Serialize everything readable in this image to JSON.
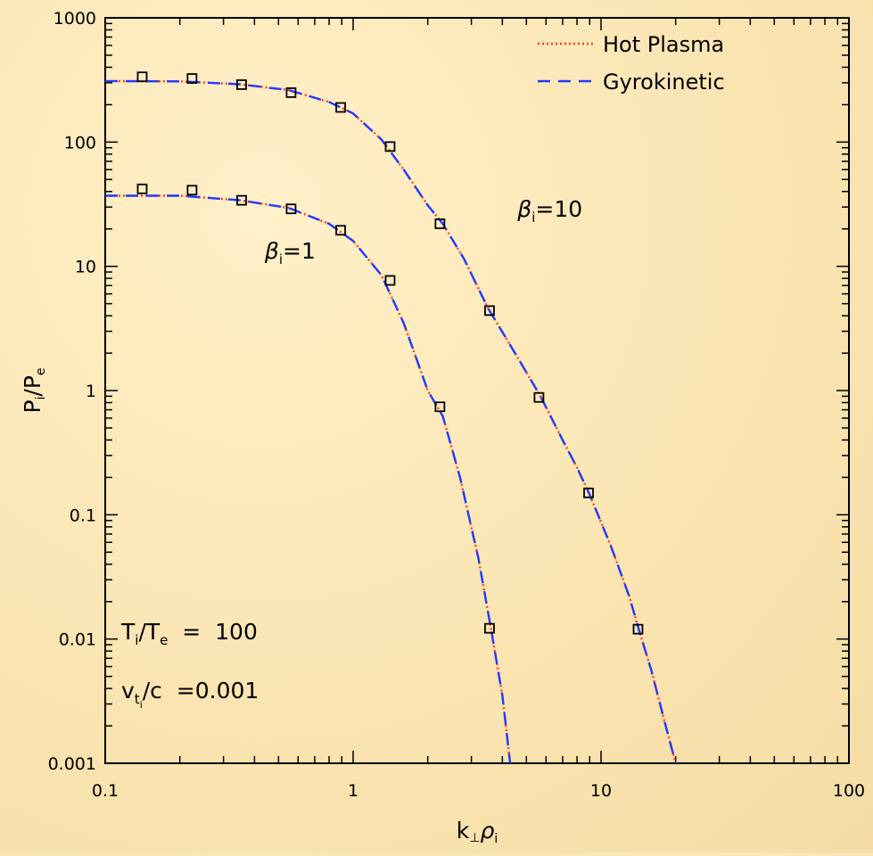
{
  "chart_data": {
    "type": "line",
    "xscale": "log",
    "yscale": "log",
    "xlim": [
      0.1,
      100
    ],
    "ylim": [
      0.001,
      1000
    ],
    "xticks": [
      0.1,
      1,
      10,
      100
    ],
    "xtick_labels": [
      "0.1",
      "1",
      "10",
      "100"
    ],
    "yticks": [
      0.001,
      0.01,
      0.1,
      1,
      10,
      100,
      1000
    ],
    "ytick_labels": [
      "0.001",
      "0.01",
      "0.1",
      "1",
      "10",
      "100",
      "1000"
    ],
    "xlabel": {
      "base": "k",
      "sub": "⊥",
      "greek": "ρ",
      "greek_sub": "i"
    },
    "ylabel": {
      "p1": "P",
      "s1": "i",
      "slash": "/",
      "p2": "P",
      "s2": "e"
    },
    "legend": {
      "position": "top-right",
      "entries": [
        {
          "label": "Hot Plasma",
          "style": "dotted",
          "color": "#ff3b1f"
        },
        {
          "label": "Gyrokinetic",
          "style": "dashed",
          "color": "#1f3bff"
        }
      ]
    },
    "series": [
      {
        "name": "Hot Plasma",
        "style": "dotted",
        "color": "#ff3b1f",
        "curves": [
          {
            "x": [
              0.1,
              0.2,
              0.35,
              0.55,
              0.8,
              1.0,
              1.3,
              1.6,
              2.0,
              2.3,
              2.7,
              3.2,
              3.6,
              4.0,
              4.3
            ],
            "y": [
              37,
              37,
              34,
              29.5,
              22,
              16,
              8.5,
              3.5,
              1.0,
              0.62,
              0.2,
              0.045,
              0.012,
              0.0035,
              0.001
            ]
          },
          {
            "x": [
              0.1,
              0.2,
              0.35,
              0.55,
              0.8,
              1.0,
              1.3,
              1.6,
              2.0,
              2.3,
              2.8,
              3.5,
              4.5,
              5.7,
              7.0,
              8.0,
              9.0,
              11,
              13,
              14.2,
              16,
              18,
              20
            ],
            "y": [
              310,
              308,
              292,
              262,
              210,
              170,
              105,
              60,
              31,
              22,
              11.5,
              4.6,
              2.0,
              0.9,
              0.4,
              0.24,
              0.145,
              0.055,
              0.022,
              0.012,
              0.0055,
              0.0022,
              0.001
            ]
          }
        ]
      },
      {
        "name": "Gyrokinetic",
        "style": "dashed",
        "color": "#1f3bff",
        "curves": [
          {
            "x": [
              0.1,
              0.2,
              0.35,
              0.55,
              0.8,
              1.0,
              1.3,
              1.6,
              2.0,
              2.3,
              2.7,
              3.2,
              3.6,
              4.0,
              4.3
            ],
            "y": [
              37,
              37,
              34,
              29.5,
              22,
              16,
              8.5,
              3.5,
              1.0,
              0.62,
              0.2,
              0.045,
              0.012,
              0.0035,
              0.001
            ]
          },
          {
            "x": [
              0.1,
              0.2,
              0.35,
              0.55,
              0.8,
              1.0,
              1.3,
              1.6,
              2.0,
              2.3,
              2.8,
              3.5,
              4.5,
              5.7,
              7.0,
              8.0,
              9.0,
              11,
              13,
              14.2,
              16,
              18,
              20
            ],
            "y": [
              310,
              308,
              292,
              262,
              210,
              170,
              105,
              60,
              31,
              22,
              11.5,
              4.6,
              2.0,
              0.9,
              0.4,
              0.24,
              0.145,
              0.055,
              0.022,
              0.012,
              0.0055,
              0.0022,
              0.001
            ]
          }
        ]
      },
      {
        "name": "",
        "style": "markers",
        "marker": "square",
        "color": "#000000",
        "points": [
          {
            "x": 0.141,
            "y": 42
          },
          {
            "x": 0.224,
            "y": 41
          },
          {
            "x": 0.355,
            "y": 34
          },
          {
            "x": 0.562,
            "y": 29
          },
          {
            "x": 0.891,
            "y": 19.5
          },
          {
            "x": 1.41,
            "y": 7.7
          },
          {
            "x": 2.24,
            "y": 0.74
          },
          {
            "x": 3.55,
            "y": 0.0122
          },
          {
            "x": 0.141,
            "y": 335
          },
          {
            "x": 0.224,
            "y": 325
          },
          {
            "x": 0.355,
            "y": 290
          },
          {
            "x": 0.562,
            "y": 250
          },
          {
            "x": 0.891,
            "y": 190
          },
          {
            "x": 1.41,
            "y": 92
          },
          {
            "x": 2.24,
            "y": 22
          },
          {
            "x": 3.55,
            "y": 4.4
          },
          {
            "x": 5.62,
            "y": 0.88
          },
          {
            "x": 8.91,
            "y": 0.15
          },
          {
            "x": 14.1,
            "y": 0.012
          }
        ]
      }
    ],
    "annotations": {
      "beta1": {
        "greek": "β",
        "sub": "i",
        "rest": "=1",
        "x": 0.44,
        "y": 11.5
      },
      "beta10": {
        "greek": "β",
        "sub": "i",
        "rest": "=10",
        "x": 4.6,
        "y": 25
      },
      "temp": {
        "t1": "T",
        "s1": "i",
        "slash": "/",
        "t2": "T",
        "s2": "e",
        "rest": "  =  100"
      },
      "vel": {
        "v": "v",
        "s1": "t",
        "s2": "i",
        "rest": "/c  =0.001"
      }
    }
  }
}
